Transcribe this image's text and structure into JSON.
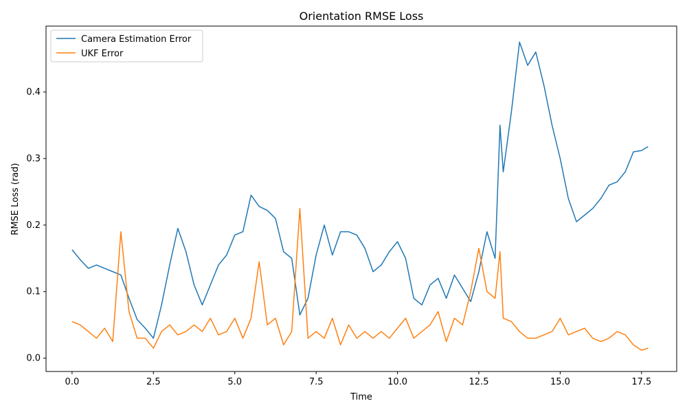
{
  "chart_data": {
    "type": "line",
    "title": "Orientation RMSE Loss",
    "x_label": "Time",
    "y_label": "RMSE Loss (rad)",
    "x": [
      0,
      0.25,
      0.5,
      0.75,
      1,
      1.25,
      1.5,
      1.75,
      2,
      2.25,
      2.5,
      2.75,
      3,
      3.25,
      3.5,
      3.75,
      4,
      4.25,
      4.5,
      4.75,
      5,
      5.25,
      5.5,
      5.75,
      6,
      6.25,
      6.5,
      6.75,
      7,
      7.25,
      7.5,
      7.75,
      8,
      8.25,
      8.5,
      8.75,
      9,
      9.25,
      9.5,
      9.75,
      10,
      10.25,
      10.5,
      10.75,
      11,
      11.25,
      11.5,
      11.75,
      12,
      12.25,
      12.5,
      12.75,
      13,
      13.15,
      13.25,
      13.5,
      13.75,
      14,
      14.25,
      14.5,
      14.75,
      15,
      15.25,
      15.5,
      15.75,
      16,
      16.25,
      16.5,
      16.75,
      17,
      17.25,
      17.5,
      17.7
    ],
    "series": [
      {
        "name": "Camera Estimation Error",
        "color": "#1f77b4",
        "values": [
          0.163,
          0.148,
          0.135,
          0.14,
          0.135,
          0.13,
          0.125,
          0.09,
          0.058,
          0.045,
          0.03,
          0.08,
          0.14,
          0.195,
          0.16,
          0.11,
          0.08,
          0.11,
          0.14,
          0.155,
          0.185,
          0.19,
          0.245,
          0.228,
          0.222,
          0.21,
          0.16,
          0.15,
          0.065,
          0.09,
          0.155,
          0.2,
          0.155,
          0.19,
          0.19,
          0.185,
          0.165,
          0.13,
          0.14,
          0.16,
          0.175,
          0.15,
          0.09,
          0.08,
          0.11,
          0.12,
          0.09,
          0.125,
          0.105,
          0.085,
          0.13,
          0.19,
          0.15,
          0.35,
          0.28,
          0.37,
          0.475,
          0.44,
          0.46,
          0.41,
          0.35,
          0.3,
          0.24,
          0.205,
          0.215,
          0.225,
          0.24,
          0.26,
          0.265,
          0.28,
          0.31,
          0.312,
          0.318
        ]
      },
      {
        "name": "UKF Error",
        "color": "#ff7f0e",
        "values": [
          0.055,
          0.05,
          0.04,
          0.03,
          0.045,
          0.025,
          0.19,
          0.07,
          0.03,
          0.03,
          0.015,
          0.04,
          0.05,
          0.035,
          0.04,
          0.05,
          0.04,
          0.06,
          0.035,
          0.04,
          0.06,
          0.03,
          0.06,
          0.145,
          0.05,
          0.06,
          0.02,
          0.04,
          0.225,
          0.03,
          0.04,
          0.03,
          0.06,
          0.02,
          0.05,
          0.03,
          0.04,
          0.03,
          0.04,
          0.03,
          0.045,
          0.06,
          0.03,
          0.04,
          0.05,
          0.07,
          0.025,
          0.06,
          0.05,
          0.1,
          0.165,
          0.1,
          0.09,
          0.16,
          0.06,
          0.055,
          0.04,
          0.03,
          0.03,
          0.035,
          0.04,
          0.06,
          0.035,
          0.04,
          0.045,
          0.03,
          0.025,
          0.03,
          0.04,
          0.035,
          0.02,
          0.012,
          0.015
        ]
      }
    ],
    "xlim": [
      -0.8,
      18.58
    ],
    "ylim": [
      -0.02,
      0.499
    ],
    "xticks": [
      {
        "value": 0,
        "label": "0.0"
      },
      2.5,
      {
        "value": 5,
        "label": "5.0"
      },
      7.5,
      {
        "value": 10,
        "label": "10.0"
      },
      12.5,
      {
        "value": 15,
        "label": "15.0"
      },
      17.5
    ],
    "yticks": [
      {
        "value": 0,
        "label": "0.0"
      },
      0.1,
      0.2,
      0.3,
      0.4
    ],
    "legend": "upper left",
    "grid": false
  }
}
